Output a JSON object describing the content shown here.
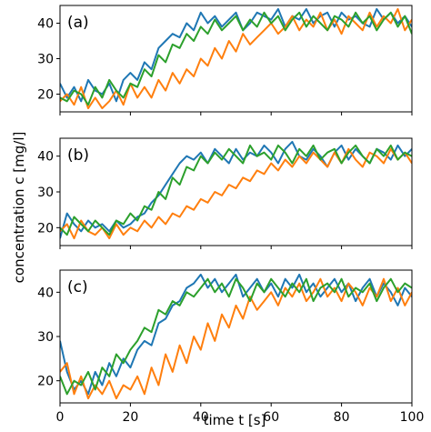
{
  "chart_data": {
    "type": "line",
    "xlabel": "time t [s]",
    "ylabel": "concentration c [mg/l]",
    "xlim": [
      0,
      100
    ],
    "ylim": [
      15,
      45
    ],
    "xticks": [
      0,
      20,
      40,
      60,
      80,
      100
    ],
    "yticks": [
      20,
      30,
      40
    ],
    "grid": false,
    "colors": [
      "#1f77b4",
      "#ff7f0e",
      "#2ca02c"
    ],
    "panels": [
      {
        "label": "(a)",
        "series": [
          {
            "color": "#1f77b4",
            "x": [
              0,
              2,
              4,
              6,
              8,
              10,
              12,
              14,
              16,
              18,
              20,
              22,
              24,
              26,
              28,
              30,
              32,
              34,
              36,
              38,
              40,
              42,
              44,
              46,
              48,
              50,
              52,
              54,
              56,
              58,
              60,
              62,
              64,
              66,
              68,
              70,
              72,
              74,
              76,
              78,
              80,
              82,
              84,
              86,
              88,
              90,
              92,
              94,
              96,
              98,
              100
            ],
            "y": [
              23,
              19,
              22,
              18,
              24,
              21,
              20,
              23,
              18,
              24,
              26,
              24,
              29,
              27,
              33,
              35,
              37,
              36,
              40,
              38,
              43,
              40,
              42,
              39,
              41,
              43,
              38,
              40,
              43,
              42,
              41,
              44,
              39,
              42,
              41,
              44,
              40,
              42,
              43,
              39,
              43,
              41,
              42,
              40,
              39,
              44,
              41,
              43,
              40,
              42,
              39
            ]
          },
          {
            "color": "#ff7f0e",
            "x": [
              0,
              2,
              4,
              6,
              8,
              10,
              12,
              14,
              16,
              18,
              20,
              22,
              24,
              26,
              28,
              30,
              32,
              34,
              36,
              38,
              40,
              42,
              44,
              46,
              48,
              50,
              52,
              54,
              56,
              58,
              60,
              62,
              64,
              66,
              68,
              70,
              72,
              74,
              76,
              78,
              80,
              82,
              84,
              86,
              88,
              90,
              92,
              94,
              96,
              98,
              100
            ],
            "y": [
              18,
              20,
              17,
              22,
              16,
              19,
              16,
              18,
              21,
              17,
              23,
              19,
              22,
              19,
              24,
              21,
              26,
              23,
              27,
              25,
              30,
              28,
              33,
              30,
              35,
              32,
              37,
              34,
              36,
              38,
              40,
              37,
              39,
              42,
              38,
              41,
              39,
              43,
              38,
              41,
              37,
              42,
              40,
              38,
              43,
              39,
              42,
              40,
              44,
              38,
              41
            ]
          },
          {
            "color": "#2ca02c",
            "x": [
              0,
              2,
              4,
              6,
              8,
              10,
              12,
              14,
              16,
              18,
              20,
              22,
              24,
              26,
              28,
              30,
              32,
              34,
              36,
              38,
              40,
              42,
              44,
              46,
              48,
              50,
              52,
              54,
              56,
              58,
              60,
              62,
              64,
              66,
              68,
              70,
              72,
              74,
              76,
              78,
              80,
              82,
              84,
              86,
              88,
              90,
              92,
              94,
              96,
              98,
              100
            ],
            "y": [
              19,
              18,
              21,
              20,
              17,
              22,
              19,
              24,
              21,
              19,
              23,
              22,
              27,
              25,
              31,
              29,
              34,
              33,
              37,
              35,
              39,
              37,
              41,
              38,
              40,
              42,
              38,
              41,
              39,
              43,
              40,
              42,
              38,
              41,
              43,
              39,
              42,
              40,
              38,
              42,
              41,
              39,
              43,
              40,
              42,
              38,
              41,
              43,
              39,
              42,
              37
            ]
          }
        ]
      },
      {
        "label": "(b)",
        "series": [
          {
            "color": "#1f77b4",
            "x": [
              0,
              2,
              4,
              6,
              8,
              10,
              12,
              14,
              16,
              18,
              20,
              22,
              24,
              26,
              28,
              30,
              32,
              34,
              36,
              38,
              40,
              42,
              44,
              46,
              48,
              50,
              52,
              54,
              56,
              58,
              60,
              62,
              64,
              66,
              68,
              70,
              72,
              74,
              76,
              78,
              80,
              82,
              84,
              86,
              88,
              90,
              92,
              94,
              96,
              98,
              100
            ],
            "y": [
              17,
              24,
              21,
              19,
              22,
              20,
              21,
              19,
              22,
              20,
              21,
              23,
              24,
              27,
              29,
              32,
              35,
              38,
              40,
              39,
              41,
              38,
              42,
              40,
              38,
              42,
              39,
              41,
              40,
              43,
              41,
              38,
              42,
              44,
              40,
              39,
              42,
              40,
              37,
              41,
              43,
              39,
              42,
              40,
              38,
              42,
              41,
              39,
              43,
              40,
              42
            ]
          },
          {
            "color": "#ff7f0e",
            "x": [
              0,
              2,
              4,
              6,
              8,
              10,
              12,
              14,
              16,
              18,
              20,
              22,
              24,
              26,
              28,
              30,
              32,
              34,
              36,
              38,
              40,
              42,
              44,
              46,
              48,
              50,
              52,
              54,
              56,
              58,
              60,
              62,
              64,
              66,
              68,
              70,
              72,
              74,
              76,
              78,
              80,
              82,
              84,
              86,
              88,
              90,
              92,
              94,
              96,
              98,
              100
            ],
            "y": [
              19,
              21,
              17,
              22,
              19,
              18,
              20,
              17,
              21,
              18,
              20,
              19,
              22,
              20,
              23,
              21,
              24,
              23,
              26,
              25,
              28,
              27,
              30,
              29,
              32,
              31,
              34,
              33,
              36,
              35,
              38,
              36,
              39,
              37,
              40,
              38,
              41,
              39,
              37,
              41,
              38,
              42,
              39,
              37,
              41,
              40,
              38,
              42,
              39,
              41,
              38
            ]
          },
          {
            "color": "#2ca02c",
            "x": [
              0,
              2,
              4,
              6,
              8,
              10,
              12,
              14,
              16,
              18,
              20,
              22,
              24,
              26,
              28,
              30,
              32,
              34,
              36,
              38,
              40,
              42,
              44,
              46,
              48,
              50,
              52,
              54,
              56,
              58,
              60,
              62,
              64,
              66,
              68,
              70,
              72,
              74,
              76,
              78,
              80,
              82,
              84,
              86,
              88,
              90,
              92,
              94,
              96,
              98,
              100
            ],
            "y": [
              20,
              18,
              23,
              21,
              19,
              22,
              20,
              18,
              22,
              21,
              24,
              22,
              26,
              25,
              30,
              28,
              34,
              32,
              37,
              36,
              40,
              38,
              41,
              39,
              42,
              40,
              38,
              43,
              40,
              41,
              39,
              43,
              41,
              38,
              42,
              40,
              43,
              39,
              41,
              42,
              38,
              41,
              43,
              40,
              38,
              42,
              40,
              43,
              39,
              41,
              40
            ]
          }
        ]
      },
      {
        "label": "(c)",
        "series": [
          {
            "color": "#1f77b4",
            "x": [
              0,
              2,
              4,
              6,
              8,
              10,
              12,
              14,
              16,
              18,
              20,
              22,
              24,
              26,
              28,
              30,
              32,
              34,
              36,
              38,
              40,
              42,
              44,
              46,
              48,
              50,
              52,
              54,
              56,
              58,
              60,
              62,
              64,
              66,
              68,
              70,
              72,
              74,
              76,
              78,
              80,
              82,
              84,
              86,
              88,
              90,
              92,
              94,
              96,
              98,
              100
            ],
            "y": [
              29,
              22,
              18,
              20,
              17,
              22,
              19,
              24,
              21,
              25,
              23,
              27,
              29,
              28,
              33,
              34,
              37,
              38,
              41,
              42,
              44,
              41,
              43,
              40,
              42,
              44,
              39,
              41,
              43,
              40,
              42,
              39,
              43,
              41,
              44,
              40,
              42,
              39,
              41,
              43,
              40,
              42,
              38,
              41,
              43,
              39,
              42,
              40,
              37,
              41,
              39
            ]
          },
          {
            "color": "#ff7f0e",
            "x": [
              0,
              2,
              4,
              6,
              8,
              10,
              12,
              14,
              16,
              18,
              20,
              22,
              24,
              26,
              28,
              30,
              32,
              34,
              36,
              38,
              40,
              42,
              44,
              46,
              48,
              50,
              52,
              54,
              56,
              58,
              60,
              62,
              64,
              66,
              68,
              70,
              72,
              74,
              76,
              78,
              80,
              82,
              84,
              86,
              88,
              90,
              92,
              94,
              96,
              98,
              100
            ],
            "y": [
              22,
              24,
              17,
              21,
              16,
              19,
              17,
              20,
              16,
              19,
              18,
              21,
              17,
              23,
              19,
              26,
              22,
              28,
              24,
              30,
              27,
              33,
              29,
              35,
              32,
              37,
              34,
              39,
              36,
              38,
              40,
              37,
              41,
              39,
              42,
              38,
              40,
              43,
              39,
              41,
              38,
              42,
              40,
              37,
              41,
              39,
              43,
              38,
              41,
              37,
              40
            ]
          },
          {
            "color": "#2ca02c",
            "x": [
              0,
              2,
              4,
              6,
              8,
              10,
              12,
              14,
              16,
              18,
              20,
              22,
              24,
              26,
              28,
              30,
              32,
              34,
              36,
              38,
              40,
              42,
              44,
              46,
              48,
              50,
              52,
              54,
              56,
              58,
              60,
              62,
              64,
              66,
              68,
              70,
              72,
              74,
              76,
              78,
              80,
              82,
              84,
              86,
              88,
              90,
              92,
              94,
              96,
              98,
              100
            ],
            "y": [
              21,
              17,
              20,
              19,
              22,
              18,
              23,
              21,
              26,
              24,
              27,
              29,
              32,
              31,
              36,
              35,
              38,
              37,
              40,
              39,
              41,
              43,
              40,
              42,
              39,
              43,
              41,
              38,
              42,
              40,
              43,
              41,
              39,
              42,
              40,
              43,
              38,
              41,
              42,
              40,
              43,
              39,
              41,
              40,
              42,
              38,
              41,
              43,
              40,
              42,
              41
            ]
          }
        ]
      }
    ]
  }
}
